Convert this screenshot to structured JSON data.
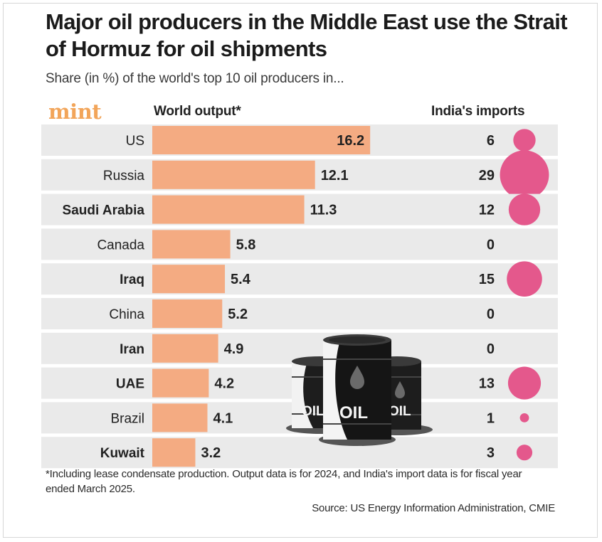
{
  "header": {
    "title": "Major oil producers in the Middle East use the Strait of Hormuz for oil shipments",
    "subtitle": "Share (in %) of the world's top 10 oil producers in...",
    "logo": "mint",
    "col_world": "World output*",
    "col_india": "India's imports"
  },
  "footer": {
    "note": "*Including lease condensate production. Output data is for 2024, and India's import data is for fiscal year ended March 2025.",
    "source": "Source: US Energy Information Administration, CMIE"
  },
  "illustration": {
    "barrel_label": "OIL"
  },
  "colors": {
    "bar": "#f4ab82",
    "bubble": "#e4588c",
    "row_bg": "#eaeaea",
    "logo": "#f2a55a"
  },
  "chart_data": {
    "type": "bar",
    "categories": [
      "US",
      "Russia",
      "Saudi Arabia",
      "Canada",
      "Iraq",
      "China",
      "Iran",
      "UAE",
      "Brazil",
      "Kuwait"
    ],
    "bold_categories": [
      "Saudi Arabia",
      "Iraq",
      "Iran",
      "UAE",
      "Kuwait"
    ],
    "series": [
      {
        "name": "World output*",
        "values": [
          16.2,
          12.1,
          11.3,
          5.8,
          5.4,
          5.2,
          4.9,
          4.2,
          4.1,
          3.2
        ]
      },
      {
        "name": "India's imports",
        "values": [
          6,
          29,
          12,
          0,
          15,
          0,
          0,
          13,
          1,
          3
        ]
      }
    ],
    "value_labels": [
      "16.2",
      "12.1",
      "11.3",
      "5.8",
      "5.4",
      "5.2",
      "4.9",
      "4.2",
      "4.1",
      "3.2"
    ],
    "import_labels": [
      "6",
      "29",
      "12",
      "0",
      "15",
      "0",
      "0",
      "13",
      "1",
      "3"
    ]
  }
}
